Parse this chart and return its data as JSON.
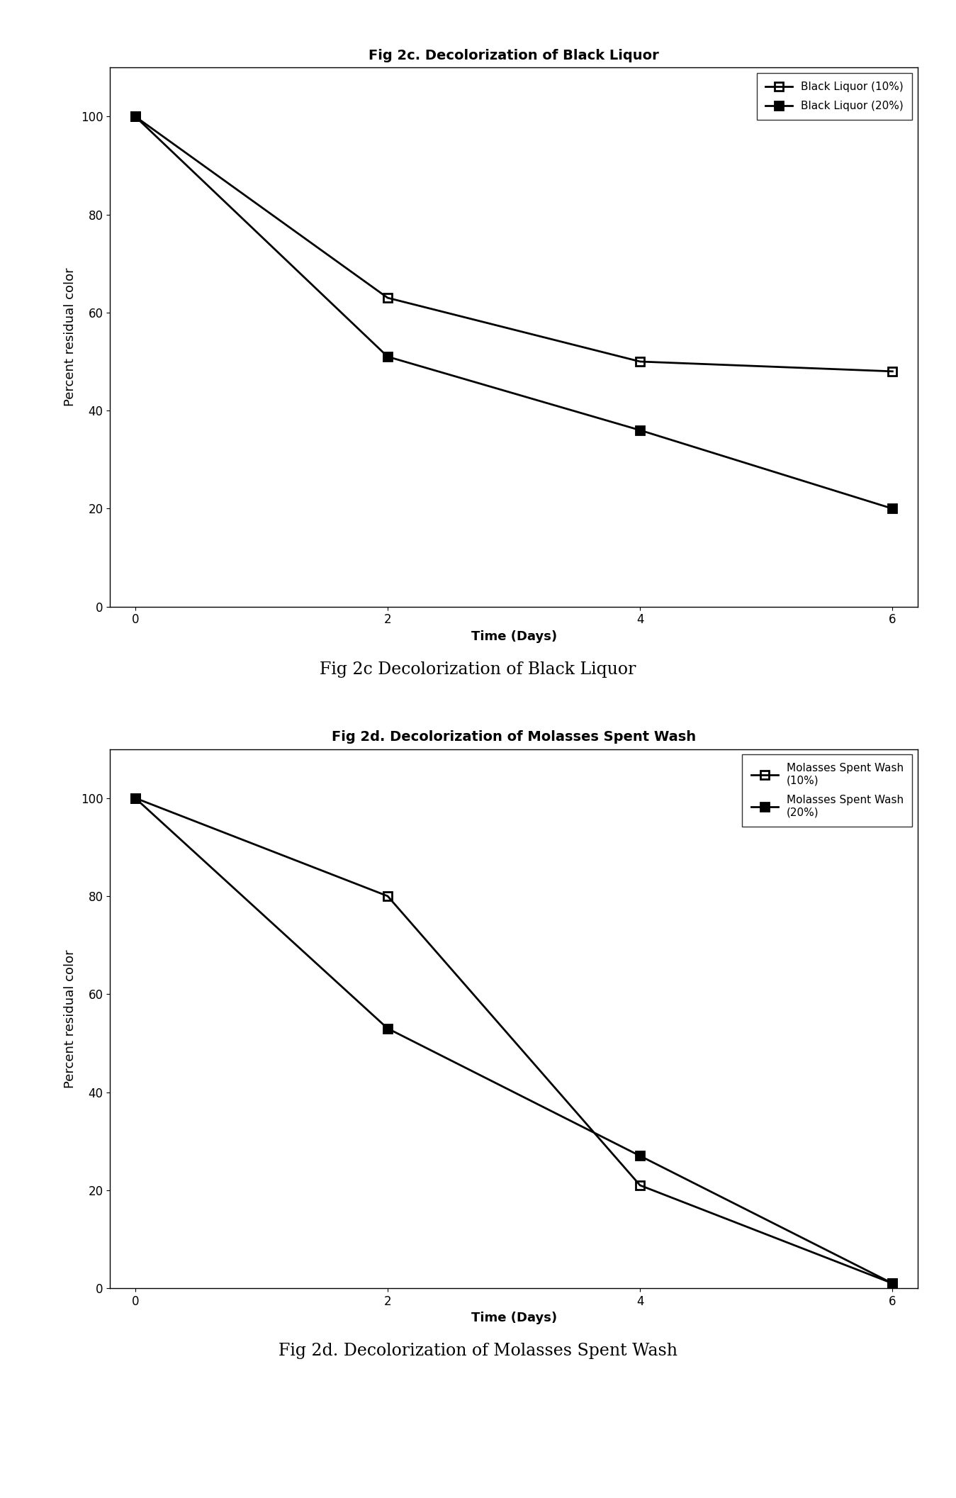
{
  "fig2c": {
    "title_inside": "Fig 2c. Decolorization of Black Liquor",
    "title_outside": "Fig 2c Decolorization of Black Liquor",
    "xlabel": "Time (Days)",
    "ylabel": "Percent residual color",
    "xlim": [
      -0.2,
      6.2
    ],
    "ylim": [
      0,
      110
    ],
    "xticks": [
      0,
      2,
      4,
      6
    ],
    "yticks": [
      0,
      20,
      40,
      60,
      80,
      100
    ],
    "series": [
      {
        "label": "Black Liquor (10%)",
        "x": [
          0,
          2,
          4,
          6
        ],
        "y": [
          100,
          63,
          50,
          48
        ],
        "marker": "s",
        "fillstyle": "none",
        "color": "black",
        "linewidth": 2.0
      },
      {
        "label": "Black Liquor (20%)",
        "x": [
          0,
          2,
          4,
          6
        ],
        "y": [
          100,
          51,
          36,
          20
        ],
        "marker": "s",
        "fillstyle": "full",
        "color": "black",
        "linewidth": 2.0
      }
    ]
  },
  "fig2d": {
    "title_inside": "Fig 2d. Decolorization of Molasses Spent Wash",
    "title_outside": "Fig 2d. Decolorization of Molasses Spent Wash",
    "xlabel": "Time (Days)",
    "ylabel": "Percent residual color",
    "xlim": [
      -0.2,
      6.2
    ],
    "ylim": [
      0,
      110
    ],
    "xticks": [
      0,
      2,
      4,
      6
    ],
    "yticks": [
      0,
      20,
      40,
      60,
      80,
      100
    ],
    "series": [
      {
        "label": "Molasses Spent Wash\n(10%)",
        "x": [
          0,
          2,
          4,
          6
        ],
        "y": [
          100,
          80,
          21,
          1
        ],
        "marker": "s",
        "fillstyle": "none",
        "color": "black",
        "linewidth": 2.0
      },
      {
        "label": "Molasses Spent Wash\n(20%)",
        "x": [
          0,
          2,
          4,
          6
        ],
        "y": [
          100,
          53,
          27,
          1
        ],
        "marker": "s",
        "fillstyle": "full",
        "color": "black",
        "linewidth": 2.0
      }
    ]
  },
  "background_color": "#ffffff",
  "title_fontsize": 14,
  "label_fontsize": 13,
  "tick_fontsize": 12,
  "legend_fontsize": 11,
  "outside_title_fontsize": 17
}
